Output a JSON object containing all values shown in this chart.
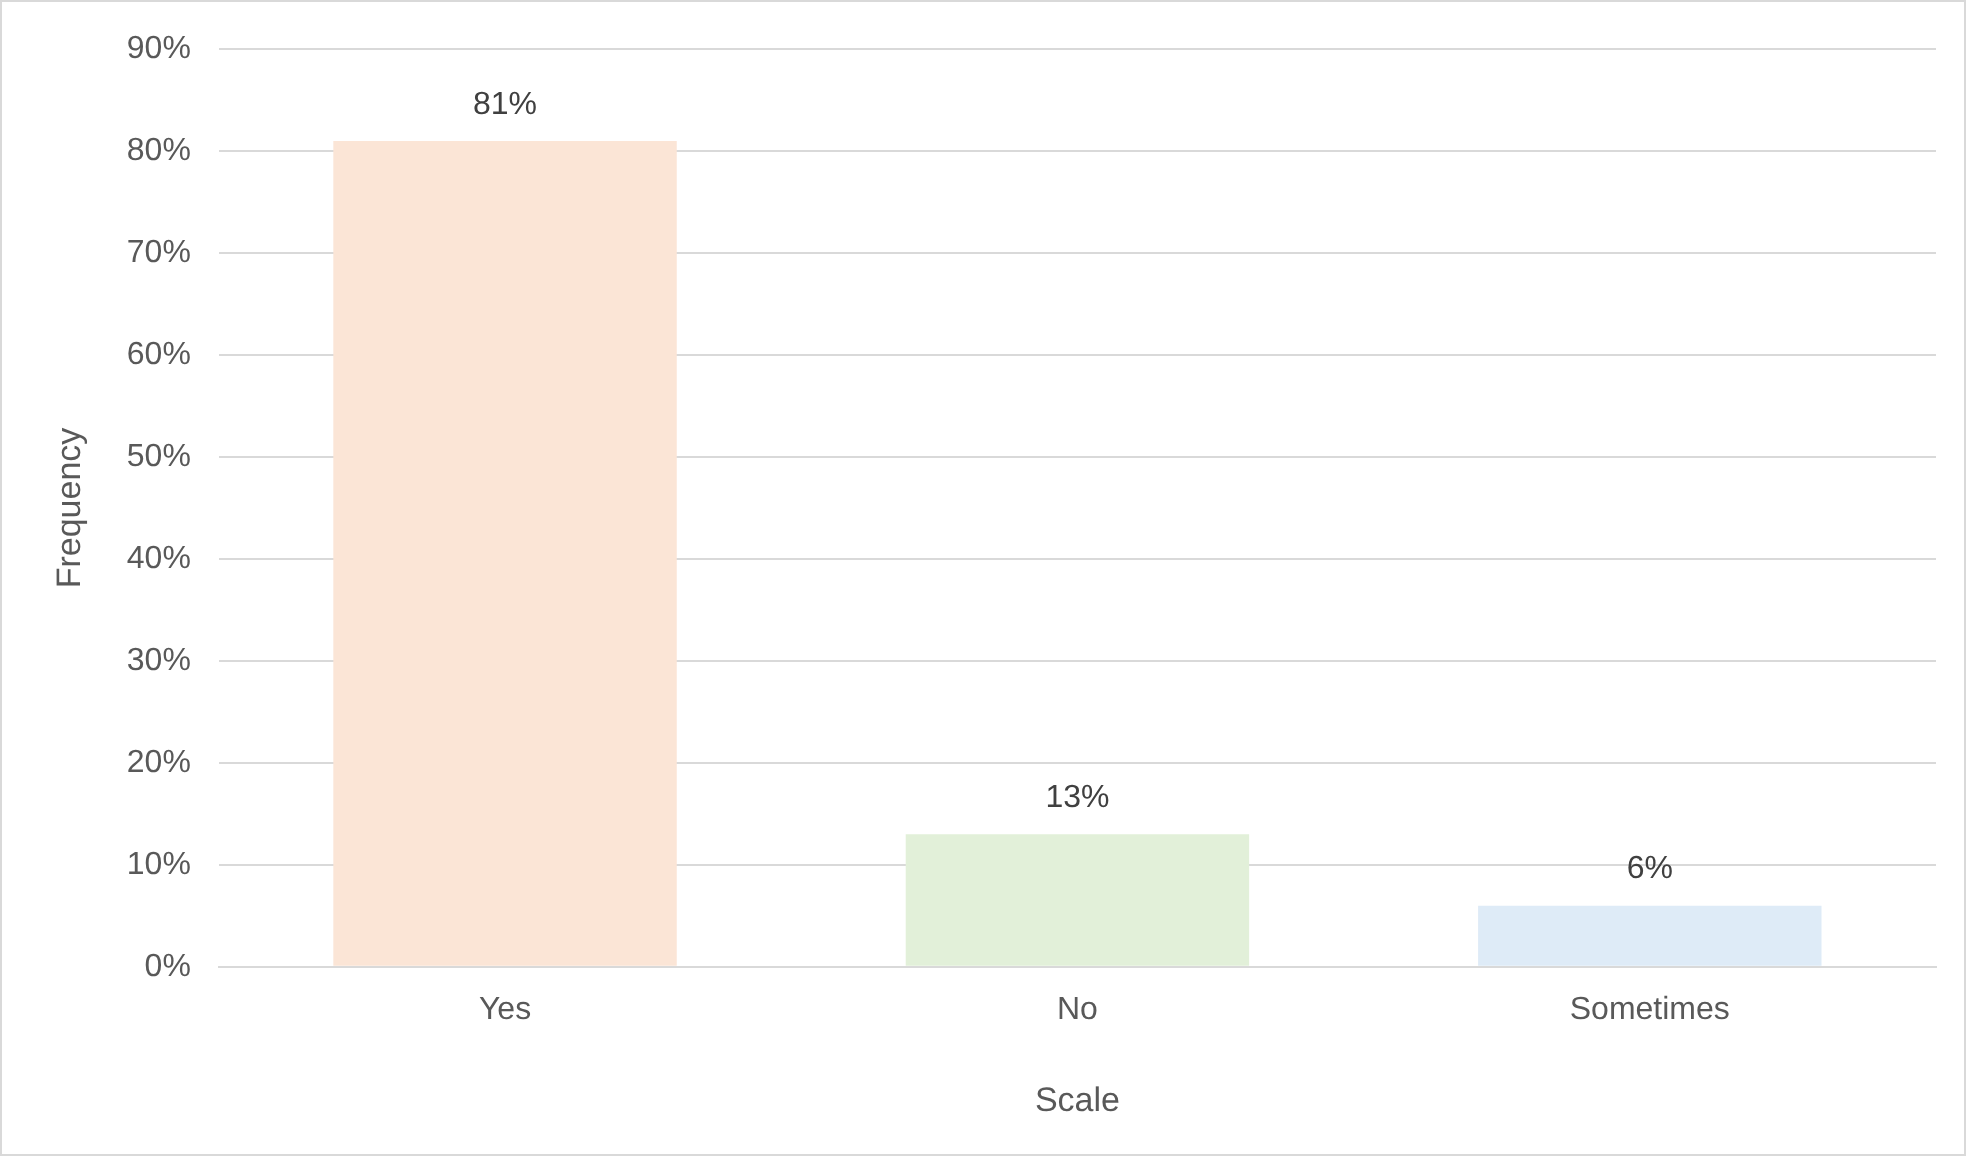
{
  "chart_data": {
    "type": "bar",
    "xlabel": "Scale",
    "ylabel": "Frequency",
    "categories": [
      "Yes",
      "No",
      "Sometimes"
    ],
    "values": [
      81,
      13,
      6
    ],
    "colors": [
      "#fbe5d6",
      "#e2f0d9",
      "#deebf7"
    ],
    "value_labels": [
      "81%",
      "13%",
      "6%"
    ],
    "ylim": [
      0,
      90
    ],
    "yticks": [
      {
        "value": 0,
        "label": "0%"
      },
      {
        "value": 10,
        "label": "10%"
      },
      {
        "value": 20,
        "label": "20%"
      },
      {
        "value": 30,
        "label": "30%"
      },
      {
        "value": 40,
        "label": "40%"
      },
      {
        "value": 50,
        "label": "50%"
      },
      {
        "value": 60,
        "label": "60%"
      },
      {
        "value": 70,
        "label": "70%"
      },
      {
        "value": 80,
        "label": "80%"
      },
      {
        "value": 90,
        "label": "90%"
      }
    ],
    "grid": "y",
    "legend": false
  }
}
